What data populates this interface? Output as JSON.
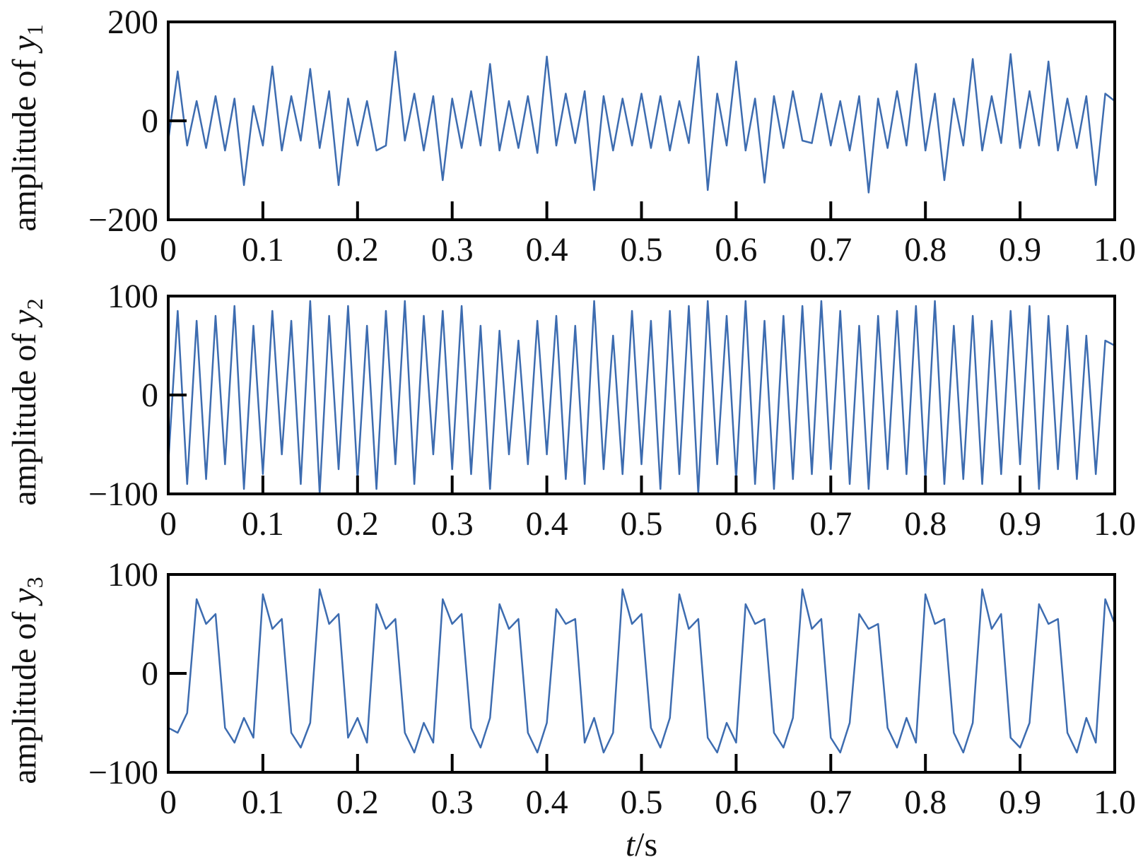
{
  "chart_data": [
    {
      "type": "line",
      "ylabel": {
        "text": "amplitude of ",
        "var": "y",
        "sub": "1"
      },
      "x": [
        0,
        0.01,
        0.02,
        0.03,
        0.04,
        0.05,
        0.06,
        0.07,
        0.08,
        0.09,
        0.1,
        0.11,
        0.12,
        0.13,
        0.14,
        0.15,
        0.16,
        0.17,
        0.18,
        0.19,
        0.2,
        0.21,
        0.22,
        0.23,
        0.24,
        0.25,
        0.26,
        0.27,
        0.28,
        0.29,
        0.3,
        0.31,
        0.32,
        0.33,
        0.34,
        0.35,
        0.36,
        0.37,
        0.38,
        0.39,
        0.4,
        0.41,
        0.42,
        0.43,
        0.44,
        0.45,
        0.46,
        0.47,
        0.48,
        0.49,
        0.5,
        0.51,
        0.52,
        0.53,
        0.54,
        0.55,
        0.56,
        0.57,
        0.58,
        0.59,
        0.6,
        0.61,
        0.62,
        0.63,
        0.64,
        0.65,
        0.66,
        0.67,
        0.68,
        0.69,
        0.7,
        0.71,
        0.72,
        0.73,
        0.74,
        0.75,
        0.76,
        0.77,
        0.78,
        0.79,
        0.8,
        0.81,
        0.82,
        0.83,
        0.84,
        0.85,
        0.86,
        0.87,
        0.88,
        0.89,
        0.9,
        0.91,
        0.92,
        0.93,
        0.94,
        0.95,
        0.96,
        0.97,
        0.98,
        0.99,
        1
      ],
      "series": [
        {
          "color": "#3d6cb0",
          "values": [
            -40,
            100,
            -50,
            40,
            -55,
            50,
            -60,
            45,
            -130,
            30,
            -50,
            110,
            -60,
            50,
            -40,
            105,
            -55,
            60,
            -130,
            45,
            -50,
            40,
            -60,
            -50,
            140,
            -40,
            55,
            -60,
            50,
            -120,
            45,
            -55,
            60,
            -50,
            115,
            -60,
            40,
            -55,
            50,
            -65,
            130,
            -50,
            55,
            -45,
            60,
            -140,
            50,
            -60,
            45,
            -50,
            55,
            -55,
            50,
            -60,
            40,
            -45,
            130,
            -140,
            55,
            -50,
            120,
            -60,
            45,
            -125,
            50,
            -55,
            60,
            -40,
            -45,
            55,
            -50,
            40,
            -60,
            50,
            -145,
            45,
            -55,
            60,
            -50,
            115,
            -60,
            55,
            -120,
            45,
            -50,
            125,
            -60,
            50,
            -45,
            135,
            -55,
            60,
            -50,
            120,
            -60,
            45,
            -55,
            50,
            -130,
            55,
            40
          ]
        }
      ],
      "xlim": [
        0,
        1
      ],
      "xticks": [
        0,
        0.1,
        0.2,
        0.3,
        0.4,
        0.5,
        0.6,
        0.7,
        0.8,
        0.9,
        {
          "value": 1,
          "label": "1.0"
        }
      ],
      "ylim": [
        -200,
        200
      ],
      "yticks": [
        {
          "value": -200,
          "label": "−200"
        },
        0,
        200
      ]
    },
    {
      "type": "line",
      "ylabel": {
        "text": "amplitude of ",
        "var": "y",
        "sub": "2"
      },
      "x": [
        0,
        0.01,
        0.02,
        0.03,
        0.04,
        0.05,
        0.06,
        0.07,
        0.08,
        0.09,
        0.1,
        0.11,
        0.12,
        0.13,
        0.14,
        0.15,
        0.16,
        0.17,
        0.18,
        0.19,
        0.2,
        0.21,
        0.22,
        0.23,
        0.24,
        0.25,
        0.26,
        0.27,
        0.28,
        0.29,
        0.3,
        0.31,
        0.32,
        0.33,
        0.34,
        0.35,
        0.36,
        0.37,
        0.38,
        0.39,
        0.4,
        0.41,
        0.42,
        0.43,
        0.44,
        0.45,
        0.46,
        0.47,
        0.48,
        0.49,
        0.5,
        0.51,
        0.52,
        0.53,
        0.54,
        0.55,
        0.56,
        0.57,
        0.58,
        0.59,
        0.6,
        0.61,
        0.62,
        0.63,
        0.64,
        0.65,
        0.66,
        0.67,
        0.68,
        0.69,
        0.7,
        0.71,
        0.72,
        0.73,
        0.74,
        0.75,
        0.76,
        0.77,
        0.78,
        0.79,
        0.8,
        0.81,
        0.82,
        0.83,
        0.84,
        0.85,
        0.86,
        0.87,
        0.88,
        0.89,
        0.9,
        0.91,
        0.92,
        0.93,
        0.94,
        0.95,
        0.96,
        0.97,
        0.98,
        0.99,
        1
      ],
      "series": [
        {
          "color": "#3d6cb0",
          "values": [
            -70,
            85,
            -90,
            75,
            -85,
            80,
            -70,
            90,
            -95,
            70,
            -80,
            85,
            -60,
            75,
            -90,
            95,
            -100,
            80,
            -75,
            90,
            -85,
            70,
            -95,
            85,
            -70,
            95,
            -90,
            80,
            -60,
            85,
            -75,
            90,
            -80,
            70,
            -95,
            65,
            -60,
            55,
            -70,
            75,
            -60,
            80,
            -85,
            70,
            -90,
            95,
            -75,
            60,
            -80,
            85,
            -70,
            75,
            -95,
            85,
            -80,
            90,
            -100,
            95,
            -70,
            80,
            -85,
            95,
            -90,
            75,
            -95,
            80,
            -85,
            90,
            -80,
            95,
            -75,
            85,
            -90,
            70,
            -95,
            80,
            -75,
            85,
            -80,
            90,
            -85,
            95,
            -90,
            70,
            -85,
            80,
            -90,
            75,
            -80,
            85,
            -70,
            90,
            -95,
            80,
            -75,
            70,
            -85,
            60,
            -80,
            55,
            50
          ]
        }
      ],
      "xlim": [
        0,
        1
      ],
      "xticks": [
        0,
        0.1,
        0.2,
        0.3,
        0.4,
        0.5,
        0.6,
        0.7,
        0.8,
        0.9,
        {
          "value": 1,
          "label": "1.0"
        }
      ],
      "ylim": [
        -100,
        100
      ],
      "yticks": [
        {
          "value": -100,
          "label": "−100"
        },
        0,
        100
      ]
    },
    {
      "type": "line",
      "ylabel": {
        "text": "amplitude of ",
        "var": "y",
        "sub": "3"
      },
      "xlabel": {
        "var": "t",
        "text": "/s"
      },
      "x": [
        0,
        0.01,
        0.02,
        0.03,
        0.04,
        0.05,
        0.06,
        0.07,
        0.08,
        0.09,
        0.1,
        0.11,
        0.12,
        0.13,
        0.14,
        0.15,
        0.16,
        0.17,
        0.18,
        0.19,
        0.2,
        0.21,
        0.22,
        0.23,
        0.24,
        0.25,
        0.26,
        0.27,
        0.28,
        0.29,
        0.3,
        0.31,
        0.32,
        0.33,
        0.34,
        0.35,
        0.36,
        0.37,
        0.38,
        0.39,
        0.4,
        0.41,
        0.42,
        0.43,
        0.44,
        0.45,
        0.46,
        0.47,
        0.48,
        0.49,
        0.5,
        0.51,
        0.52,
        0.53,
        0.54,
        0.55,
        0.56,
        0.57,
        0.58,
        0.59,
        0.6,
        0.61,
        0.62,
        0.63,
        0.64,
        0.65,
        0.66,
        0.67,
        0.68,
        0.69,
        0.7,
        0.71,
        0.72,
        0.73,
        0.74,
        0.75,
        0.76,
        0.77,
        0.78,
        0.79,
        0.8,
        0.81,
        0.82,
        0.83,
        0.84,
        0.85,
        0.86,
        0.87,
        0.88,
        0.89,
        0.9,
        0.91,
        0.92,
        0.93,
        0.94,
        0.95,
        0.96,
        0.97,
        0.98,
        0.99,
        1
      ],
      "series": [
        {
          "color": "#3d6cb0",
          "values": [
            -55,
            -60,
            -40,
            75,
            50,
            60,
            -55,
            -70,
            -45,
            -65,
            80,
            45,
            55,
            -60,
            -75,
            -50,
            85,
            50,
            60,
            -65,
            -45,
            -70,
            70,
            45,
            55,
            -60,
            -80,
            -50,
            -70,
            75,
            50,
            60,
            -55,
            -75,
            -45,
            70,
            45,
            55,
            -60,
            -80,
            -50,
            65,
            50,
            55,
            -70,
            -45,
            -80,
            -60,
            85,
            50,
            60,
            -55,
            -75,
            -45,
            80,
            45,
            55,
            -65,
            -80,
            -50,
            -70,
            70,
            50,
            55,
            -60,
            -75,
            -45,
            85,
            45,
            55,
            -65,
            -80,
            -50,
            60,
            45,
            50,
            -55,
            -75,
            -45,
            -70,
            80,
            50,
            55,
            -60,
            -80,
            -50,
            85,
            45,
            60,
            -65,
            -75,
            -50,
            70,
            50,
            55,
            -60,
            -80,
            -45,
            -70,
            75,
            50
          ]
        }
      ],
      "xlim": [
        0,
        1
      ],
      "xticks": [
        0,
        0.1,
        0.2,
        0.3,
        0.4,
        0.5,
        0.6,
        0.7,
        0.8,
        0.9,
        {
          "value": 1,
          "label": "1.0"
        }
      ],
      "ylim": [
        -100,
        100
      ],
      "yticks": [
        {
          "value": -100,
          "label": "−100"
        },
        0,
        100
      ]
    }
  ]
}
